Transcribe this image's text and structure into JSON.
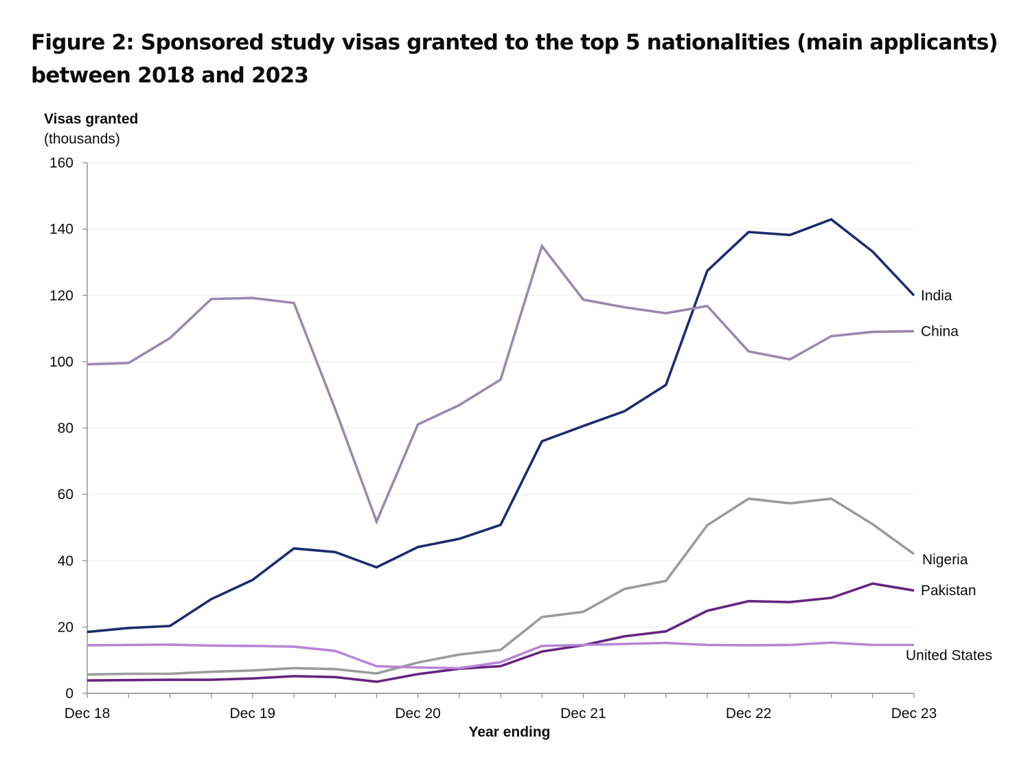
{
  "figure": {
    "title": "Figure 2: Sponsored study visas granted to the top 5 nationalities (main applicants) between 2018 and 2023"
  },
  "chart_data": {
    "type": "line",
    "title": "Figure 2: Sponsored study visas granted to the top 5 nationalities (main applicants) between 2018 and 2023",
    "ylabel": "Visas granted",
    "ylabel_sub": "(thousands)",
    "xlabel": "Year ending",
    "ylim": [
      0,
      160
    ],
    "yticks": [
      0,
      20,
      40,
      60,
      80,
      100,
      120,
      140,
      160
    ],
    "grid": true,
    "legend": "direct-labels-right",
    "x": [
      "Dec 18",
      "Mar 19",
      "Jun 19",
      "Sep 19",
      "Dec 19",
      "Mar 20",
      "Jun 20",
      "Sep 20",
      "Dec 20",
      "Mar 21",
      "Jun 21",
      "Sep 21",
      "Dec 21",
      "Mar 22",
      "Jun 22",
      "Sep 22",
      "Dec 22",
      "Mar 23",
      "Jun 23",
      "Sep 23",
      "Dec 23"
    ],
    "xtick_labels": [
      "Dec 18",
      "",
      "",
      "",
      "Dec 19",
      "",
      "",
      "",
      "Dec 20",
      "",
      "",
      "",
      "Dec 21",
      "",
      "",
      "",
      "Dec 22",
      "",
      "",
      "",
      "Dec 23"
    ],
    "series": [
      {
        "name": "India",
        "color": "#1d2c6b",
        "label_offset": 0,
        "values": [
          18.5,
          19.7,
          20.3,
          28.4,
          34.2,
          43.7,
          42.6,
          38.0,
          44.1,
          46.6,
          50.8,
          76.0,
          80.6,
          85.1,
          93.0,
          127.4,
          139.1,
          138.2,
          142.9,
          133.2,
          120.0
        ]
      },
      {
        "name": "China",
        "color": "#9b89ab",
        "label_offset": 0,
        "values": [
          99.2,
          99.6,
          107.1,
          118.9,
          119.2,
          117.7,
          85.7,
          51.8,
          81.1,
          86.9,
          94.6,
          134.9,
          118.7,
          116.4,
          114.6,
          116.8,
          103.1,
          100.7,
          107.7,
          109.0,
          109.2
        ]
      },
      {
        "name": "Nigeria",
        "color": "#9b9b9b",
        "label_offset": 1,
        "values": [
          5.7,
          5.9,
          5.9,
          6.5,
          6.9,
          7.6,
          7.3,
          6.0,
          9.3,
          11.7,
          13.1,
          23.0,
          24.6,
          31.5,
          33.9,
          50.7,
          58.7,
          57.3,
          58.7,
          51.0,
          42.0
        ]
      },
      {
        "name": "Pakistan",
        "color": "#65257f",
        "label_offset": 0,
        "values": [
          3.9,
          4.0,
          4.1,
          4.1,
          4.5,
          5.2,
          4.9,
          3.5,
          5.8,
          7.4,
          8.2,
          12.6,
          14.5,
          17.2,
          18.7,
          24.9,
          27.8,
          27.5,
          28.8,
          33.1,
          31.0
        ]
      },
      {
        "name": "United States",
        "color": "#b886d4",
        "label_offset": 2,
        "values": [
          14.5,
          14.6,
          14.7,
          14.4,
          14.3,
          14.1,
          12.8,
          8.2,
          7.8,
          7.6,
          9.4,
          14.3,
          14.6,
          14.9,
          15.2,
          14.6,
          14.5,
          14.6,
          15.3,
          14.6,
          14.6
        ]
      }
    ]
  }
}
